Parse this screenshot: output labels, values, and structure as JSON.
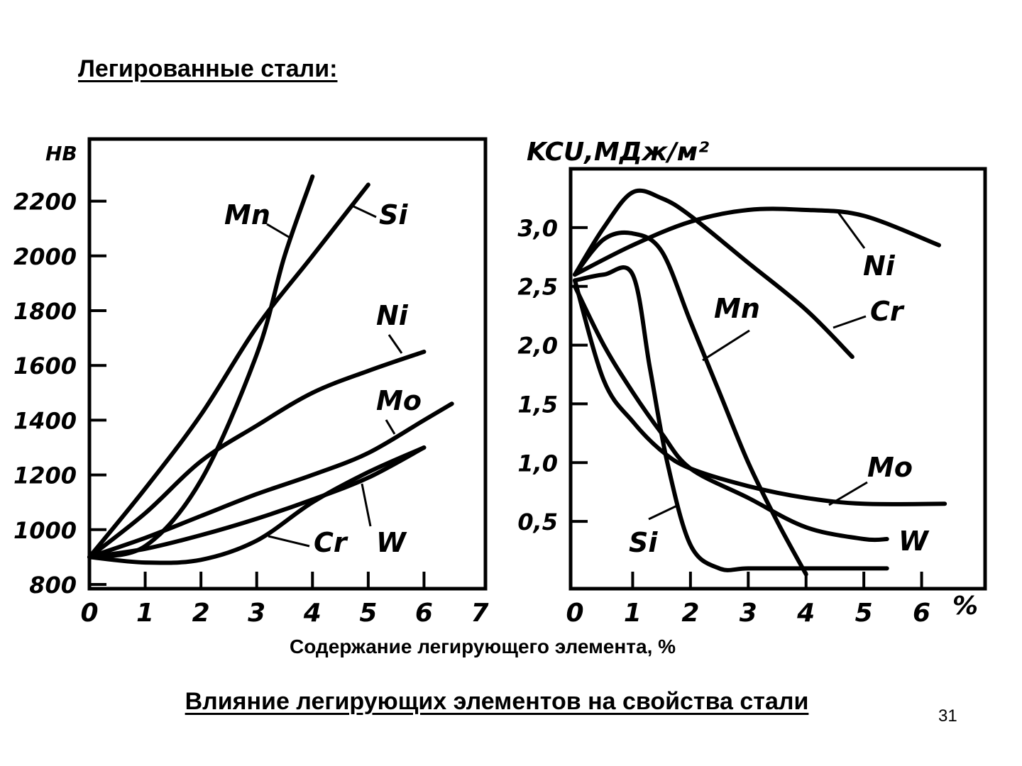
{
  "slide": {
    "title": "Легированные стали:",
    "x_caption": "Содержание легирующего элемента, %",
    "caption": "Влияние легирующих элементов на свойства стали",
    "page_number": "31"
  },
  "chart_data": [
    {
      "type": "line",
      "ylabel": "HB",
      "xlim": [
        0,
        7
      ],
      "ylim": [
        800,
        2300
      ],
      "x_ticks": [
        "0",
        "1",
        "2",
        "3",
        "4",
        "5",
        "6",
        "7"
      ],
      "y_ticks": [
        "800",
        "1000",
        "1200",
        "1400",
        "1600",
        "1800",
        "2000",
        "2200"
      ],
      "x_tick_values": [
        0,
        1,
        2,
        3,
        4,
        5,
        6,
        7
      ],
      "y_tick_values": [
        800,
        1000,
        1200,
        1400,
        1600,
        1800,
        2000,
        2200
      ],
      "grid": false,
      "series": [
        {
          "name": "Mn",
          "x": [
            0,
            1,
            2,
            3,
            3.5,
            4
          ],
          "y": [
            900,
            940,
            1180,
            1640,
            2000,
            2290
          ]
        },
        {
          "name": "Si",
          "x": [
            0,
            1,
            2,
            3,
            4,
            5
          ],
          "y": [
            900,
            1150,
            1420,
            1740,
            2000,
            2260
          ]
        },
        {
          "name": "Ni",
          "x": [
            0,
            1,
            2,
            3,
            4,
            5,
            6
          ],
          "y": [
            900,
            1060,
            1250,
            1380,
            1500,
            1580,
            1650
          ]
        },
        {
          "name": "Mo",
          "x": [
            0,
            1,
            2,
            3,
            4,
            5,
            6,
            6.5
          ],
          "y": [
            900,
            970,
            1050,
            1130,
            1200,
            1280,
            1400,
            1460
          ]
        },
        {
          "name": "Cr",
          "x": [
            0,
            1,
            2,
            3,
            4,
            5,
            6
          ],
          "y": [
            900,
            930,
            980,
            1040,
            1110,
            1190,
            1300
          ]
        },
        {
          "name": "W",
          "x": [
            0,
            1,
            2,
            3,
            4,
            5,
            6
          ],
          "y": [
            900,
            880,
            890,
            960,
            1100,
            1210,
            1300
          ]
        }
      ]
    },
    {
      "type": "line",
      "ylabel": "KCU,МДж/м²",
      "xunit": "%",
      "xlim": [
        0,
        7
      ],
      "ylim": [
        0,
        3.5
      ],
      "x_ticks": [
        "0",
        "1",
        "2",
        "3",
        "4",
        "5",
        "6"
      ],
      "y_ticks": [
        "0,5",
        "1,0",
        "1,5",
        "2,0",
        "2,5",
        "3,0"
      ],
      "x_tick_values": [
        0,
        1,
        2,
        3,
        4,
        5,
        6
      ],
      "y_tick_values": [
        0.5,
        1.0,
        1.5,
        2.0,
        2.5,
        3.0
      ],
      "grid": false,
      "series": [
        {
          "name": "Ni",
          "x": [
            0,
            1,
            2,
            3,
            4,
            5,
            6.3
          ],
          "y": [
            2.6,
            2.85,
            3.05,
            3.15,
            3.15,
            3.1,
            2.85
          ]
        },
        {
          "name": "Cr",
          "x": [
            0,
            0.5,
            1,
            1.5,
            2,
            3,
            4,
            4.8
          ],
          "y": [
            2.6,
            3.0,
            3.3,
            3.25,
            3.1,
            2.7,
            2.3,
            1.9
          ]
        },
        {
          "name": "Mn",
          "x": [
            0,
            0.5,
            1,
            1.5,
            2,
            2.5,
            3,
            3.5,
            4
          ],
          "y": [
            2.6,
            2.9,
            2.95,
            2.8,
            2.2,
            1.6,
            1.0,
            0.5,
            0.05
          ]
        },
        {
          "name": "Si",
          "x": [
            0,
            0.5,
            1,
            1.3,
            1.6,
            2,
            2.5,
            3,
            4,
            5.4
          ],
          "y": [
            2.55,
            2.6,
            2.6,
            1.8,
            1.0,
            0.3,
            0.1,
            0.1,
            0.1,
            0.1
          ]
        },
        {
          "name": "Mo",
          "x": [
            0,
            0.5,
            1,
            1.5,
            2,
            3,
            4,
            5,
            6.4
          ],
          "y": [
            2.55,
            1.7,
            1.35,
            1.1,
            0.95,
            0.8,
            0.7,
            0.65,
            0.65
          ]
        },
        {
          "name": "W",
          "x": [
            0,
            0.5,
            1,
            1.5,
            2,
            3,
            4,
            5,
            5.4
          ],
          "y": [
            2.5,
            2.0,
            1.6,
            1.25,
            0.95,
            0.7,
            0.45,
            0.35,
            0.35
          ]
        }
      ]
    }
  ]
}
